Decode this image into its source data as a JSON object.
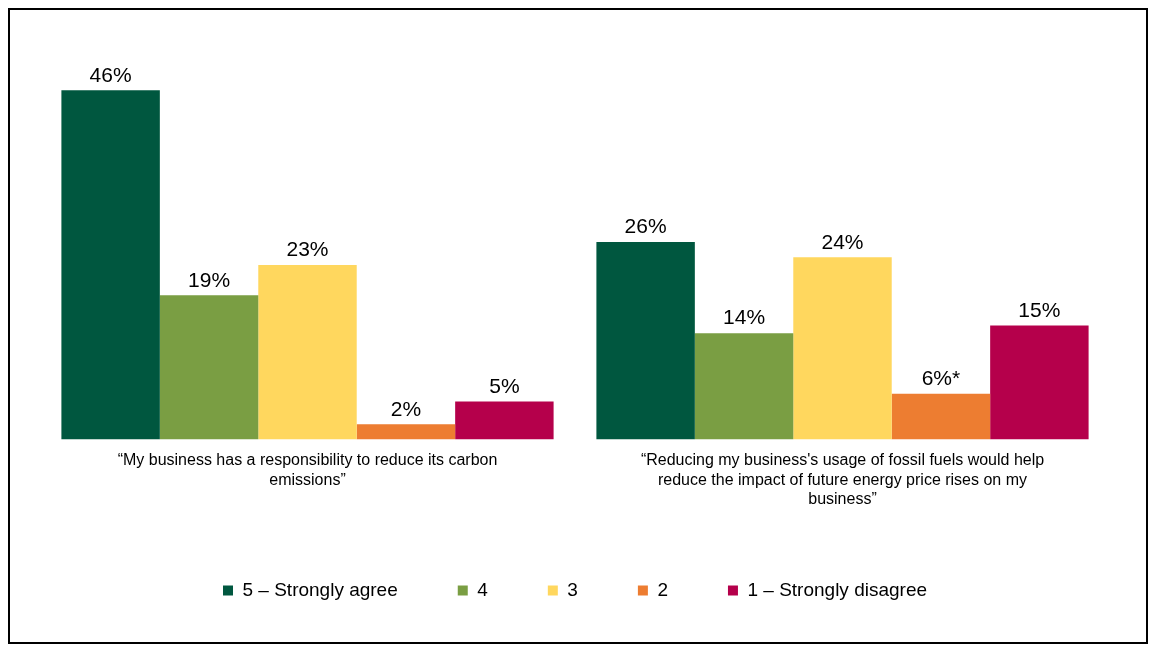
{
  "chart_data": {
    "type": "bar",
    "categories": [
      "“My business has a responsibility to reduce its carbon emissions”",
      "“Reducing my business's usage of fossil fuels would help reduce the impact of future energy price rises on my business”"
    ],
    "series": [
      {
        "name": "5 – Strongly agree",
        "color": "#00573f",
        "values": [
          46,
          26
        ],
        "value_labels": [
          "46%",
          "26%"
        ]
      },
      {
        "name": "4",
        "color": "#7a9e43",
        "values": [
          19,
          14
        ],
        "value_labels": [
          "19%",
          "14%"
        ]
      },
      {
        "name": "3",
        "color": "#ffd75e",
        "values": [
          23,
          24
        ],
        "value_labels": [
          "23%",
          "24%"
        ]
      },
      {
        "name": "2",
        "color": "#ed7d31",
        "values": [
          2,
          6
        ],
        "value_labels": [
          "2%",
          "6%*"
        ]
      },
      {
        "name": "1 – Strongly disagree",
        "color": "#b5004b",
        "values": [
          5,
          15
        ],
        "value_labels": [
          "5%",
          "15%"
        ]
      }
    ],
    "legend": "bottom",
    "tick_labels": "x",
    "grid": false
  }
}
